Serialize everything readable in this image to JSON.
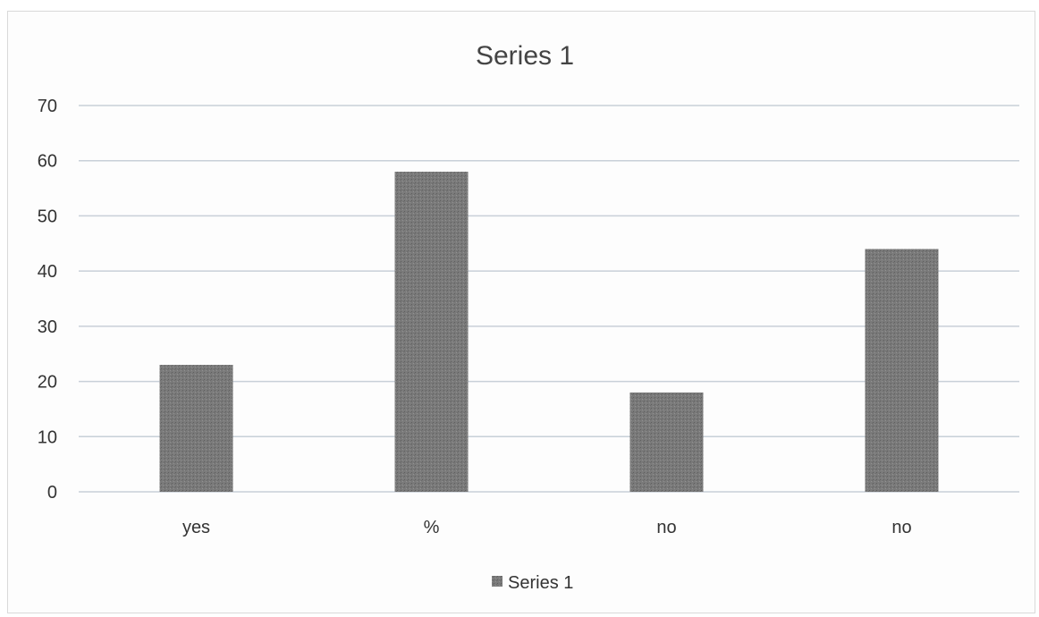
{
  "chart_data": {
    "type": "bar",
    "title": "Series 1",
    "categories": [
      "yes",
      "%",
      "no",
      "no"
    ],
    "series": [
      {
        "name": "Series 1",
        "values": [
          23,
          58,
          18,
          44
        ]
      }
    ],
    "ylim": [
      0,
      70
    ],
    "yticks": [
      0,
      10,
      20,
      30,
      40,
      50,
      60,
      70
    ],
    "xlabel": "",
    "ylabel": "",
    "grid": true,
    "legend": "bottom",
    "colors": {
      "bar": "#7a7a7a",
      "grid": "#c8d0d8",
      "text": "#333333"
    }
  }
}
